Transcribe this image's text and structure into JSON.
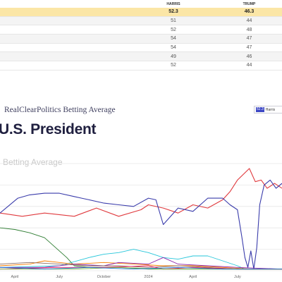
{
  "table": {
    "headers": [
      "",
      "HARRIS",
      "TRUMP"
    ],
    "rows": [
      {
        "harris": "52.3",
        "trump": "46.3",
        "highlight": true
      },
      {
        "harris": "51",
        "trump": "44"
      },
      {
        "harris": "52",
        "trump": "48"
      },
      {
        "harris": "54",
        "trump": "47"
      },
      {
        "harris": "54",
        "trump": "47"
      },
      {
        "harris": "49",
        "trump": "46"
      },
      {
        "harris": "52",
        "trump": "44"
      }
    ]
  },
  "brand": "RealClearPolitics Betting Average",
  "legend": {
    "value": "52.3",
    "label": "Harris"
  },
  "title": "U.S. President",
  "colors": {
    "highlight_row": "#fbe6a6",
    "title": "#202040",
    "legend_accent": "#3b46c4"
  },
  "chart_data": {
    "type": "line",
    "title": "U.S. President",
    "subtitle": "Betting Average",
    "x_ticks": [
      "April",
      "July",
      "October",
      "2024",
      "April",
      "July"
    ],
    "x_tick_positions": [
      1,
      4,
      7,
      10,
      13,
      16
    ],
    "xlim": [
      0,
      19
    ],
    "ylim": [
      0,
      65
    ],
    "grid": true,
    "series": [
      {
        "color": "#e03a3e",
        "points": [
          [
            0,
            35
          ],
          [
            1.5,
            33
          ],
          [
            3,
            35
          ],
          [
            5,
            33
          ],
          [
            6.5,
            38
          ],
          [
            8,
            33
          ],
          [
            9.5,
            37
          ],
          [
            10,
            40
          ],
          [
            11,
            38
          ],
          [
            12,
            35
          ],
          [
            13,
            40
          ],
          [
            14,
            38
          ],
          [
            15,
            43
          ],
          [
            15.5,
            48
          ],
          [
            16,
            55
          ],
          [
            16.8,
            62
          ],
          [
            17.2,
            54
          ],
          [
            17.6,
            55
          ],
          [
            18,
            50
          ],
          [
            18.5,
            53
          ],
          [
            19,
            50
          ]
        ]
      },
      {
        "color": "#3a3cab",
        "points": [
          [
            0,
            35
          ],
          [
            1.2,
            44
          ],
          [
            2,
            46
          ],
          [
            3,
            47
          ],
          [
            4,
            47
          ],
          [
            5,
            45
          ],
          [
            5.5,
            44
          ],
          [
            6,
            43
          ],
          [
            7,
            41
          ],
          [
            8,
            40
          ],
          [
            9,
            39
          ],
          [
            10,
            44
          ],
          [
            10.5,
            43
          ],
          [
            11,
            28
          ],
          [
            11.5,
            33
          ],
          [
            12,
            38
          ],
          [
            13,
            36
          ],
          [
            14,
            44
          ],
          [
            15,
            44
          ],
          [
            15.5,
            40
          ],
          [
            16,
            37
          ],
          [
            16.3,
            20
          ],
          [
            16.5,
            8
          ],
          [
            16.7,
            2
          ],
          [
            16.9,
            12
          ],
          [
            17.1,
            1
          ],
          [
            17.3,
            14
          ],
          [
            17.5,
            40
          ],
          [
            17.8,
            52
          ],
          [
            18.2,
            55
          ],
          [
            18.6,
            50
          ],
          [
            19,
            53
          ]
        ]
      },
      {
        "color": "#2e7d32",
        "points": [
          [
            0,
            26
          ],
          [
            1,
            25
          ],
          [
            2,
            23
          ],
          [
            3,
            20
          ],
          [
            4,
            12
          ],
          [
            4.5,
            8
          ],
          [
            5,
            3
          ],
          [
            6,
            2
          ],
          [
            8,
            2
          ],
          [
            10,
            1
          ],
          [
            13,
            1
          ],
          [
            16,
            1
          ],
          [
            19,
            1
          ]
        ]
      },
      {
        "color": "#26c6da",
        "points": [
          [
            0,
            2
          ],
          [
            4,
            3
          ],
          [
            6,
            8
          ],
          [
            7,
            10
          ],
          [
            8,
            11
          ],
          [
            9,
            13
          ],
          [
            10,
            11
          ],
          [
            11,
            8
          ],
          [
            12,
            7
          ],
          [
            13,
            9
          ],
          [
            14,
            9
          ],
          [
            15,
            6
          ],
          [
            16,
            3
          ],
          [
            16.5,
            1
          ],
          [
            19,
            1
          ]
        ]
      },
      {
        "color": "#f57c00",
        "points": [
          [
            0,
            3
          ],
          [
            2,
            4
          ],
          [
            3,
            6
          ],
          [
            4,
            5
          ],
          [
            5,
            4
          ],
          [
            7,
            5
          ],
          [
            9,
            4
          ],
          [
            11,
            3
          ],
          [
            13,
            3
          ],
          [
            15,
            2
          ],
          [
            17,
            1
          ],
          [
            19,
            1
          ]
        ]
      },
      {
        "color": "#8e24aa",
        "points": [
          [
            0,
            2
          ],
          [
            3,
            2
          ],
          [
            5,
            4
          ],
          [
            7,
            3
          ],
          [
            8,
            5
          ],
          [
            10,
            4
          ],
          [
            11,
            8
          ],
          [
            12,
            4
          ],
          [
            14,
            3
          ],
          [
            16,
            2
          ],
          [
            19,
            1
          ]
        ]
      },
      {
        "color": "#8d6e63",
        "points": [
          [
            0,
            4
          ],
          [
            2,
            5
          ],
          [
            4,
            4
          ],
          [
            6,
            3
          ],
          [
            8,
            3
          ],
          [
            10,
            2
          ],
          [
            12,
            3
          ],
          [
            14,
            2
          ],
          [
            16,
            1
          ],
          [
            19,
            1
          ]
        ]
      },
      {
        "color": "#e91e63",
        "points": [
          [
            0,
            1
          ],
          [
            4,
            2
          ],
          [
            7,
            2
          ],
          [
            10,
            3
          ],
          [
            11,
            1
          ],
          [
            13,
            2
          ],
          [
            16,
            1
          ],
          [
            19,
            1
          ]
        ]
      },
      {
        "color": "#7cb342",
        "points": [
          [
            0,
            1
          ],
          [
            5,
            1
          ],
          [
            8,
            2
          ],
          [
            11,
            1
          ],
          [
            14,
            1
          ],
          [
            17,
            1
          ],
          [
            19,
            1
          ]
        ]
      },
      {
        "color": "#1976d2",
        "points": [
          [
            0,
            2
          ],
          [
            3,
            1
          ],
          [
            6,
            2
          ],
          [
            9,
            1
          ],
          [
            12,
            2
          ],
          [
            15,
            1
          ],
          [
            19,
            1
          ]
        ]
      }
    ]
  }
}
